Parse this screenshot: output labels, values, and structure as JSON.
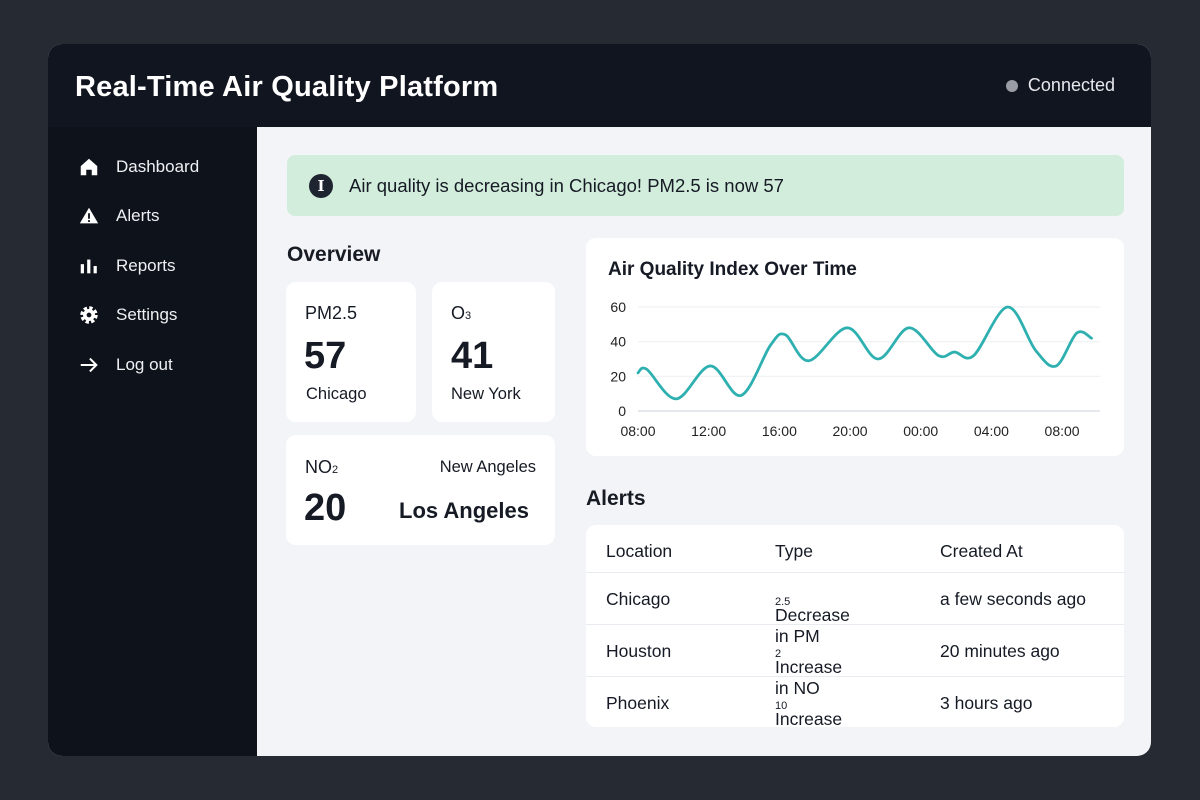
{
  "header": {
    "title": "Real-Time Air Quality Platform",
    "status": "Connected"
  },
  "sidebar": {
    "items": [
      {
        "label": "Dashboard",
        "icon": "home-icon"
      },
      {
        "label": "Alerts",
        "icon": "warning-icon"
      },
      {
        "label": "Reports",
        "icon": "bar-chart-icon"
      },
      {
        "label": "Settings",
        "icon": "gear-icon"
      },
      {
        "label": "Log out",
        "icon": "arrow-right-icon"
      }
    ]
  },
  "banner": {
    "icon": "info-icon",
    "text": "Air quality is decreasing in Chicago! PM2.5 is now 57",
    "color": "#d3eddc"
  },
  "overview": {
    "title": "Overview",
    "cards": [
      {
        "pollutant": "PM2.5",
        "value": "57",
        "city": "Chicago"
      },
      {
        "pollutant": "O",
        "sub": "3",
        "value": "41",
        "city": "New York"
      },
      {
        "pollutant": "NO",
        "sub": "2",
        "value": "20",
        "city": "Los Angeles",
        "extra": "New Angeles"
      }
    ]
  },
  "chart_data": {
    "type": "line",
    "title": "Air Quality Index Over Time",
    "xlabel": "",
    "ylabel": "",
    "ylim": [
      0,
      60
    ],
    "yticks": [
      "0",
      "20",
      "40",
      "60"
    ],
    "xticks": [
      "08:00",
      "12:00",
      "16:00",
      "20:00",
      "00:00",
      "04:00",
      "08:00"
    ],
    "grid": true,
    "color": "#2fb0b0",
    "x": [
      "08:00",
      "08:30",
      "10:10",
      "12:05",
      "13:50",
      "15:30",
      "16:20",
      "17:40",
      "19:50",
      "21:35",
      "23:20",
      "01:00",
      "01:55",
      "03:00",
      "04:55",
      "06:30",
      "07:40",
      "08:50",
      "09:40"
    ],
    "values": [
      22,
      24,
      7,
      26,
      9,
      38,
      44,
      29,
      48,
      30,
      48,
      32,
      34,
      32,
      60,
      35,
      26,
      45,
      42
    ]
  },
  "alerts": {
    "title": "Alerts",
    "columns": [
      "Location",
      "Type",
      "Created At"
    ],
    "rows": [
      {
        "location": "Chicago",
        "type": "Decrease in PM",
        "sub": "2.5",
        "created": "a few seconds ago"
      },
      {
        "location": "Houston",
        "type": "Increase in NO",
        "sub": "2",
        "created": "20 minutes ago"
      },
      {
        "location": "Phoenix",
        "type": "Increase in PM",
        "sub": "10",
        "created": "3 hours ago"
      }
    ]
  }
}
